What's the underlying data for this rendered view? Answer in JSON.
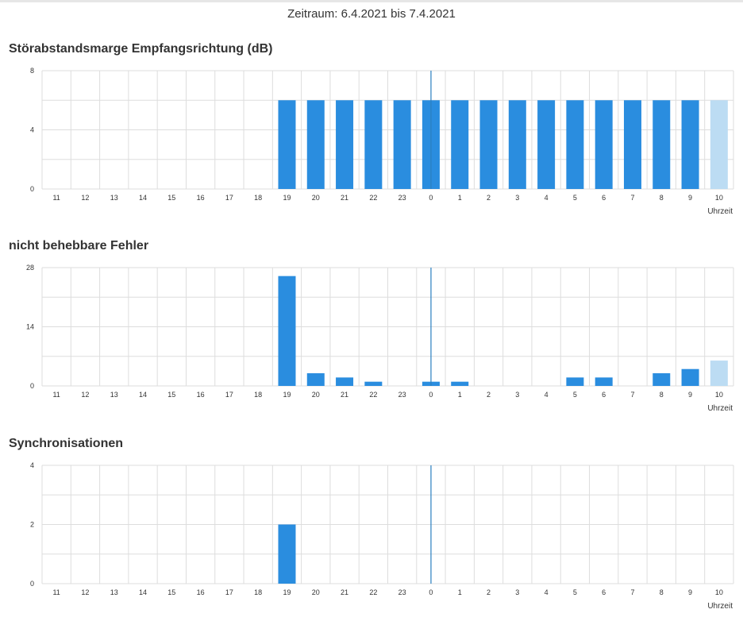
{
  "header": {
    "period": "Zeitraum: 6.4.2021 bis 7.4.2021"
  },
  "colors": {
    "bar": "#2a8ddf",
    "bar_current": "#bcdcf3",
    "grid": "#dddddd",
    "divider": "#2a7fc0",
    "tick_text": "#333333"
  },
  "chart_data": [
    {
      "type": "bar",
      "title": "Störabstandsmarge Empfangsrichtung (dB)",
      "xlabel": "Uhrzeit",
      "ylabel": "",
      "categories": [
        "11",
        "12",
        "13",
        "14",
        "15",
        "16",
        "17",
        "18",
        "19",
        "20",
        "21",
        "22",
        "23",
        "0",
        "1",
        "2",
        "3",
        "4",
        "5",
        "6",
        "7",
        "8",
        "9",
        "10"
      ],
      "values": [
        null,
        null,
        null,
        null,
        null,
        null,
        null,
        null,
        6,
        6,
        6,
        6,
        6,
        6,
        6,
        6,
        6,
        6,
        6,
        6,
        6,
        6,
        6,
        6
      ],
      "current_index": 23,
      "day_divider_category": "0",
      "ylim": [
        0,
        8
      ],
      "yticks": [
        0,
        4,
        8
      ],
      "grid": true
    },
    {
      "type": "bar",
      "title": "nicht behebbare Fehler",
      "xlabel": "Uhrzeit",
      "ylabel": "",
      "categories": [
        "11",
        "12",
        "13",
        "14",
        "15",
        "16",
        "17",
        "18",
        "19",
        "20",
        "21",
        "22",
        "23",
        "0",
        "1",
        "2",
        "3",
        "4",
        "5",
        "6",
        "7",
        "8",
        "9",
        "10"
      ],
      "values": [
        null,
        null,
        null,
        null,
        null,
        null,
        null,
        null,
        26,
        3,
        2,
        1,
        null,
        1,
        1,
        null,
        null,
        null,
        2,
        2,
        null,
        3,
        4,
        6
      ],
      "current_index": 23,
      "day_divider_category": "0",
      "ylim": [
        0,
        28
      ],
      "yticks": [
        0,
        14,
        28
      ],
      "grid": true
    },
    {
      "type": "bar",
      "title": "Synchronisationen",
      "xlabel": "Uhrzeit",
      "ylabel": "",
      "categories": [
        "11",
        "12",
        "13",
        "14",
        "15",
        "16",
        "17",
        "18",
        "19",
        "20",
        "21",
        "22",
        "23",
        "0",
        "1",
        "2",
        "3",
        "4",
        "5",
        "6",
        "7",
        "8",
        "9",
        "10"
      ],
      "values": [
        null,
        null,
        null,
        null,
        null,
        null,
        null,
        null,
        2,
        null,
        null,
        null,
        null,
        null,
        null,
        null,
        null,
        null,
        null,
        null,
        null,
        null,
        null,
        null
      ],
      "current_index": 23,
      "day_divider_category": "0",
      "ylim": [
        0,
        4
      ],
      "yticks": [
        0,
        2,
        4
      ],
      "grid": true
    }
  ]
}
